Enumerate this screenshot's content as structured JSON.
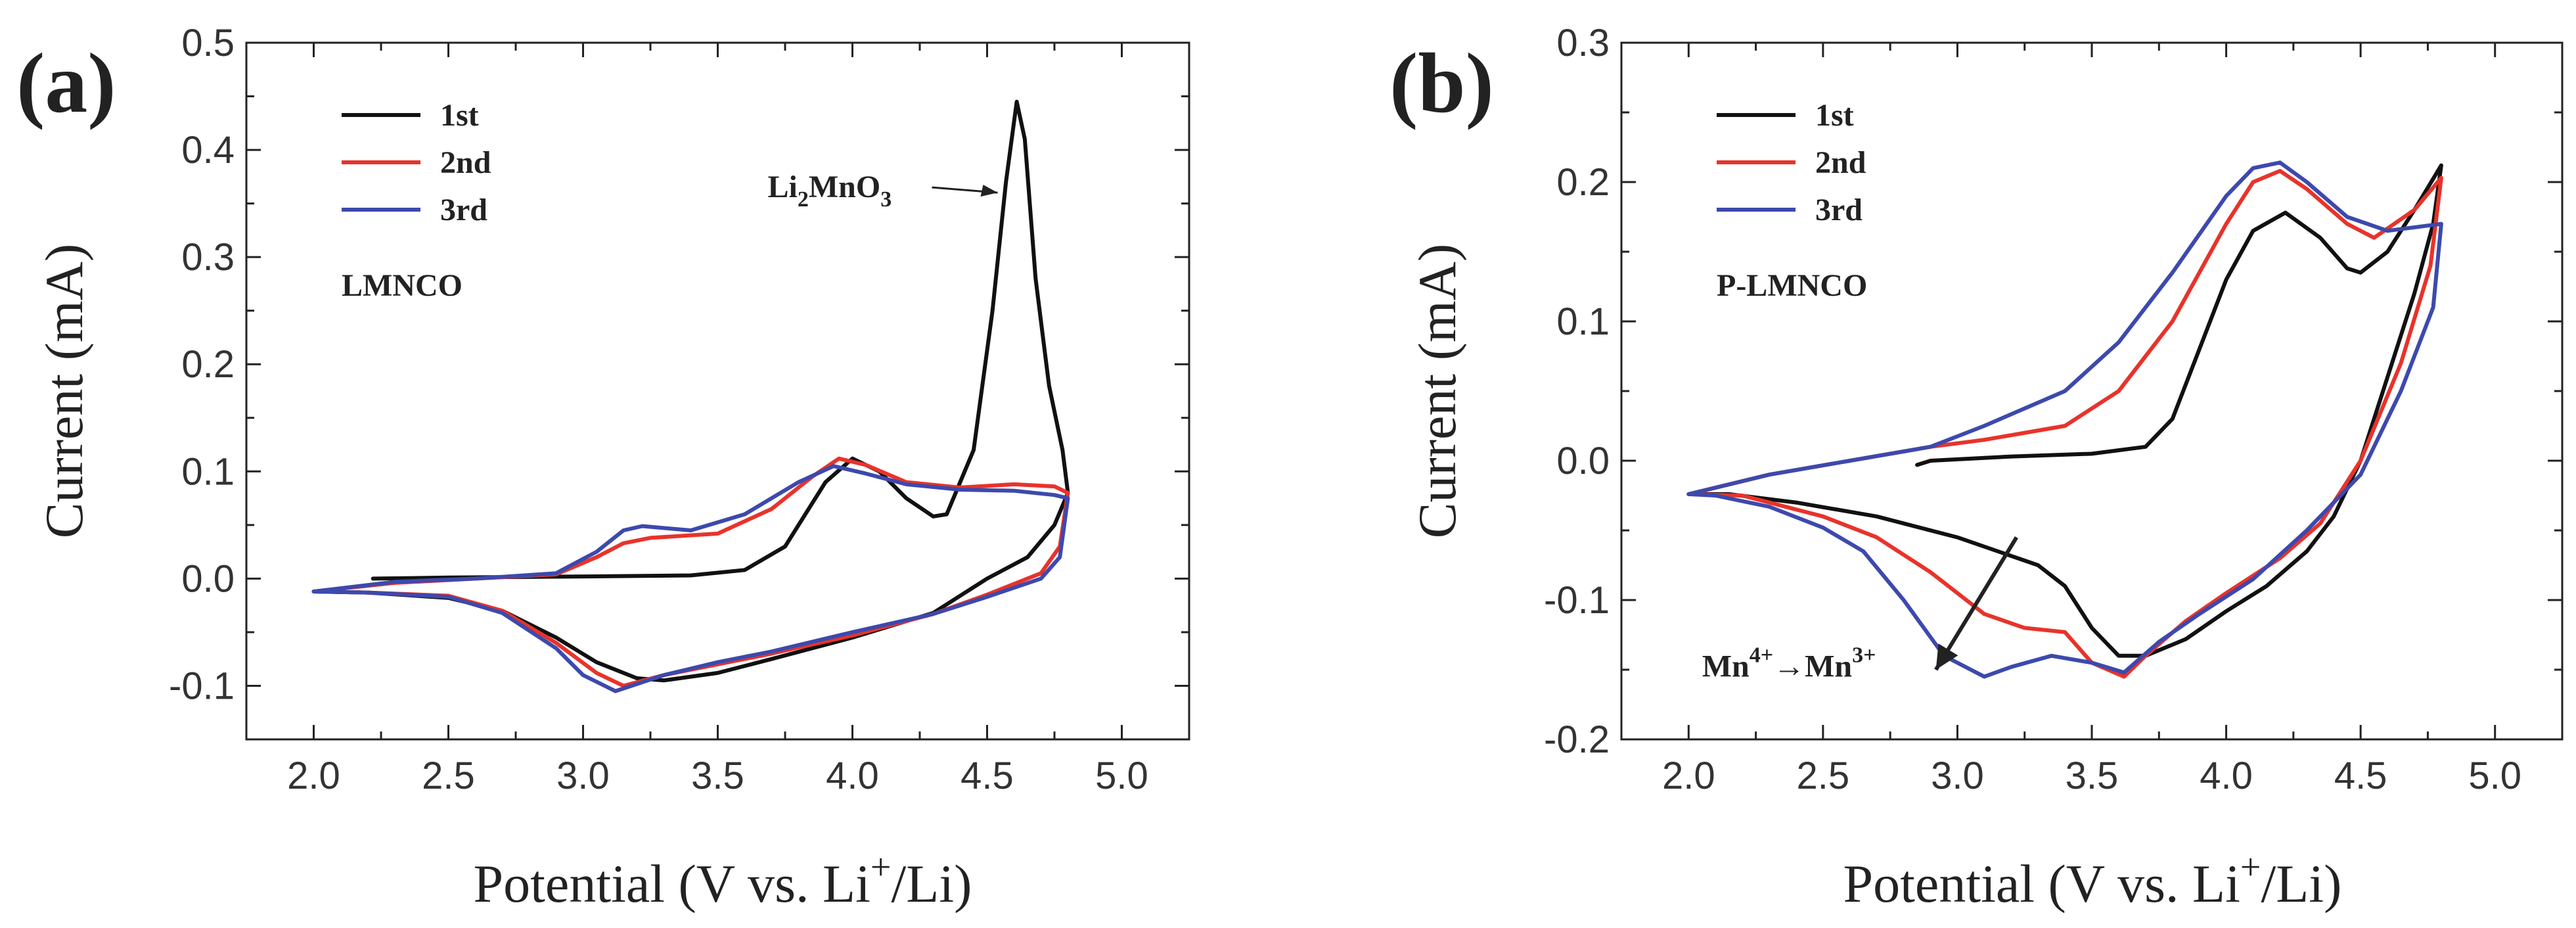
{
  "chart_data": [
    {
      "type": "line",
      "panel_label": "(a)",
      "sample_label": "LMNCO",
      "xlabel": "Potential (V vs. Li",
      "xlabel_sup": "+",
      "xlabel_end": "/Li)",
      "ylabel": "Current (mA)",
      "xlim": [
        1.75,
        5.25
      ],
      "ylim": [
        -0.15,
        0.5
      ],
      "xticks": [
        "2.0",
        "2.5",
        "3.0",
        "3.5",
        "4.0",
        "4.5",
        "5.0"
      ],
      "yticks": [
        "-0.1",
        "0.0",
        "0.1",
        "0.2",
        "0.3",
        "0.4",
        "0.5"
      ],
      "legend_position": "top-left",
      "annotation": {
        "main": "Li",
        "sub1": "2",
        "mid": "MnO",
        "sub2": "3",
        "x": 4.6,
        "y": 0.365
      },
      "series": [
        {
          "name": "1st",
          "color": "#111111",
          "points": [
            [
              2.22,
              0.0
            ],
            [
              2.5,
              0.001
            ],
            [
              3.0,
              0.002
            ],
            [
              3.4,
              0.003
            ],
            [
              3.6,
              0.008
            ],
            [
              3.75,
              0.03
            ],
            [
              3.9,
              0.09
            ],
            [
              4.0,
              0.112
            ],
            [
              4.1,
              0.1
            ],
            [
              4.2,
              0.075
            ],
            [
              4.3,
              0.058
            ],
            [
              4.35,
              0.06
            ],
            [
              4.45,
              0.12
            ],
            [
              4.52,
              0.25
            ],
            [
              4.57,
              0.37
            ],
            [
              4.61,
              0.445
            ],
            [
              4.64,
              0.41
            ],
            [
              4.68,
              0.28
            ],
            [
              4.73,
              0.18
            ],
            [
              4.78,
              0.12
            ],
            [
              4.8,
              0.08
            ],
            [
              4.75,
              0.05
            ],
            [
              4.65,
              0.02
            ],
            [
              4.5,
              0.0
            ],
            [
              4.3,
              -0.032
            ],
            [
              4.0,
              -0.055
            ],
            [
              3.7,
              -0.075
            ],
            [
              3.5,
              -0.088
            ],
            [
              3.3,
              -0.095
            ],
            [
              3.2,
              -0.093
            ],
            [
              3.05,
              -0.078
            ],
            [
              2.9,
              -0.055
            ],
            [
              2.7,
              -0.03
            ],
            [
              2.5,
              -0.018
            ],
            [
              2.2,
              -0.013
            ],
            [
              2.0,
              -0.012
            ]
          ]
        },
        {
          "name": "2nd",
          "color": "#e8332b",
          "points": [
            [
              2.0,
              -0.012
            ],
            [
              2.3,
              -0.004
            ],
            [
              2.6,
              0.0
            ],
            [
              2.9,
              0.004
            ],
            [
              3.05,
              0.02
            ],
            [
              3.15,
              0.033
            ],
            [
              3.25,
              0.038
            ],
            [
              3.5,
              0.042
            ],
            [
              3.7,
              0.065
            ],
            [
              3.85,
              0.095
            ],
            [
              3.95,
              0.112
            ],
            [
              4.05,
              0.106
            ],
            [
              4.2,
              0.09
            ],
            [
              4.4,
              0.085
            ],
            [
              4.6,
              0.088
            ],
            [
              4.75,
              0.086
            ],
            [
              4.8,
              0.08
            ],
            [
              4.77,
              0.03
            ],
            [
              4.7,
              0.005
            ],
            [
              4.5,
              -0.015
            ],
            [
              4.3,
              -0.033
            ],
            [
              4.0,
              -0.053
            ],
            [
              3.7,
              -0.07
            ],
            [
              3.5,
              -0.08
            ],
            [
              3.3,
              -0.09
            ],
            [
              3.15,
              -0.1
            ],
            [
              3.05,
              -0.088
            ],
            [
              2.9,
              -0.06
            ],
            [
              2.7,
              -0.03
            ],
            [
              2.5,
              -0.016
            ],
            [
              2.2,
              -0.013
            ],
            [
              2.0,
              -0.012
            ]
          ]
        },
        {
          "name": "3rd",
          "color": "#3d49ad",
          "points": [
            [
              2.0,
              -0.012
            ],
            [
              2.3,
              -0.003
            ],
            [
              2.6,
              0.0
            ],
            [
              2.9,
              0.005
            ],
            [
              3.05,
              0.025
            ],
            [
              3.15,
              0.045
            ],
            [
              3.22,
              0.049
            ],
            [
              3.4,
              0.045
            ],
            [
              3.6,
              0.06
            ],
            [
              3.8,
              0.09
            ],
            [
              3.93,
              0.105
            ],
            [
              4.05,
              0.098
            ],
            [
              4.2,
              0.088
            ],
            [
              4.4,
              0.083
            ],
            [
              4.6,
              0.082
            ],
            [
              4.75,
              0.078
            ],
            [
              4.8,
              0.075
            ],
            [
              4.77,
              0.02
            ],
            [
              4.7,
              0.0
            ],
            [
              4.5,
              -0.017
            ],
            [
              4.3,
              -0.033
            ],
            [
              4.0,
              -0.05
            ],
            [
              3.7,
              -0.068
            ],
            [
              3.5,
              -0.078
            ],
            [
              3.3,
              -0.09
            ],
            [
              3.12,
              -0.105
            ],
            [
              3.0,
              -0.09
            ],
            [
              2.9,
              -0.065
            ],
            [
              2.7,
              -0.032
            ],
            [
              2.5,
              -0.017
            ],
            [
              2.2,
              -0.013
            ],
            [
              2.0,
              -0.012
            ]
          ]
        }
      ]
    },
    {
      "type": "line",
      "panel_label": "(b)",
      "sample_label": "P-LMNCO",
      "xlabel": "Potential (V vs. Li",
      "xlabel_sup": "+",
      "xlabel_end": "/Li)",
      "ylabel": "Current (mA)",
      "xlim": [
        1.75,
        5.25
      ],
      "ylim": [
        -0.2,
        0.3
      ],
      "xticks": [
        "2.0",
        "2.5",
        "3.0",
        "3.5",
        "4.0",
        "4.5",
        "5.0"
      ],
      "yticks": [
        "-0.2",
        "-0.1",
        "0.0",
        "0.1",
        "0.2",
        "0.3"
      ],
      "legend_position": "top-left",
      "annotation": {
        "main": "Mn",
        "sup1": "4+",
        "arrow": "→",
        "mid": "Mn",
        "sup2": "3+",
        "x": 2.05,
        "y": -0.155
      },
      "series": [
        {
          "name": "1st",
          "color": "#111111",
          "points": [
            [
              2.85,
              -0.003
            ],
            [
              2.9,
              0.0
            ],
            [
              3.2,
              0.003
            ],
            [
              3.5,
              0.005
            ],
            [
              3.7,
              0.01
            ],
            [
              3.8,
              0.03
            ],
            [
              3.9,
              0.08
            ],
            [
              4.0,
              0.13
            ],
            [
              4.1,
              0.165
            ],
            [
              4.22,
              0.178
            ],
            [
              4.35,
              0.16
            ],
            [
              4.45,
              0.138
            ],
            [
              4.5,
              0.135
            ],
            [
              4.6,
              0.15
            ],
            [
              4.7,
              0.18
            ],
            [
              4.8,
              0.212
            ],
            [
              4.77,
              0.17
            ],
            [
              4.7,
              0.12
            ],
            [
              4.6,
              0.06
            ],
            [
              4.5,
              0.0
            ],
            [
              4.4,
              -0.04
            ],
            [
              4.3,
              -0.065
            ],
            [
              4.15,
              -0.09
            ],
            [
              4.0,
              -0.108
            ],
            [
              3.85,
              -0.128
            ],
            [
              3.7,
              -0.14
            ],
            [
              3.6,
              -0.14
            ],
            [
              3.5,
              -0.12
            ],
            [
              3.4,
              -0.09
            ],
            [
              3.3,
              -0.075
            ],
            [
              3.0,
              -0.055
            ],
            [
              2.7,
              -0.04
            ],
            [
              2.4,
              -0.03
            ],
            [
              2.15,
              -0.024
            ],
            [
              2.0,
              -0.024
            ]
          ]
        },
        {
          "name": "2nd",
          "color": "#e8332b",
          "points": [
            [
              2.0,
              -0.024
            ],
            [
              2.3,
              -0.01
            ],
            [
              2.6,
              0.0
            ],
            [
              2.9,
              0.01
            ],
            [
              3.1,
              0.015
            ],
            [
              3.4,
              0.025
            ],
            [
              3.6,
              0.05
            ],
            [
              3.8,
              0.1
            ],
            [
              4.0,
              0.17
            ],
            [
              4.1,
              0.2
            ],
            [
              4.2,
              0.208
            ],
            [
              4.3,
              0.195
            ],
            [
              4.45,
              0.17
            ],
            [
              4.55,
              0.16
            ],
            [
              4.7,
              0.18
            ],
            [
              4.8,
              0.203
            ],
            [
              4.76,
              0.14
            ],
            [
              4.65,
              0.07
            ],
            [
              4.5,
              0.0
            ],
            [
              4.35,
              -0.045
            ],
            [
              4.2,
              -0.07
            ],
            [
              4.0,
              -0.095
            ],
            [
              3.85,
              -0.115
            ],
            [
              3.7,
              -0.14
            ],
            [
              3.62,
              -0.155
            ],
            [
              3.5,
              -0.145
            ],
            [
              3.4,
              -0.123
            ],
            [
              3.25,
              -0.12
            ],
            [
              3.1,
              -0.11
            ],
            [
              2.9,
              -0.08
            ],
            [
              2.7,
              -0.055
            ],
            [
              2.5,
              -0.04
            ],
            [
              2.2,
              -0.025
            ],
            [
              2.0,
              -0.024
            ]
          ]
        },
        {
          "name": "3rd",
          "color": "#3d49ad",
          "points": [
            [
              2.0,
              -0.024
            ],
            [
              2.3,
              -0.01
            ],
            [
              2.6,
              0.0
            ],
            [
              2.9,
              0.01
            ],
            [
              3.1,
              0.025
            ],
            [
              3.4,
              0.05
            ],
            [
              3.6,
              0.085
            ],
            [
              3.8,
              0.135
            ],
            [
              4.0,
              0.19
            ],
            [
              4.1,
              0.21
            ],
            [
              4.2,
              0.214
            ],
            [
              4.3,
              0.2
            ],
            [
              4.45,
              0.175
            ],
            [
              4.6,
              0.165
            ],
            [
              4.8,
              0.17
            ],
            [
              4.77,
              0.11
            ],
            [
              4.65,
              0.05
            ],
            [
              4.5,
              -0.01
            ],
            [
              4.3,
              -0.05
            ],
            [
              4.1,
              -0.085
            ],
            [
              3.9,
              -0.11
            ],
            [
              3.75,
              -0.13
            ],
            [
              3.62,
              -0.152
            ],
            [
              3.5,
              -0.145
            ],
            [
              3.35,
              -0.14
            ],
            [
              3.2,
              -0.148
            ],
            [
              3.1,
              -0.155
            ],
            [
              2.95,
              -0.14
            ],
            [
              2.8,
              -0.1
            ],
            [
              2.65,
              -0.065
            ],
            [
              2.5,
              -0.048
            ],
            [
              2.3,
              -0.033
            ],
            [
              2.1,
              -0.025
            ],
            [
              2.0,
              -0.024
            ]
          ]
        }
      ]
    }
  ]
}
